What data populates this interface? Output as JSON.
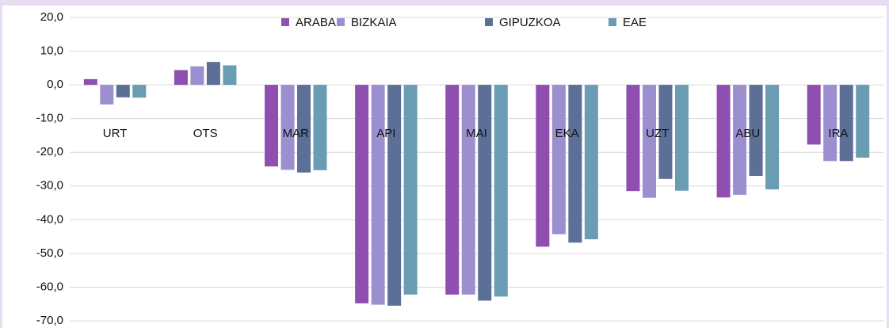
{
  "chart_data": {
    "type": "bar",
    "categories": [
      "URT",
      "OTS",
      "MAR",
      "API",
      "MAI",
      "EKA",
      "UZT",
      "ABU",
      "IRA"
    ],
    "series": [
      {
        "name": "ARABA",
        "color": "#8e4fb0",
        "values": [
          1.7,
          4.4,
          -24.2,
          -64.8,
          -62.2,
          -48.0,
          -31.5,
          -33.4,
          -17.7
        ]
      },
      {
        "name": "BIZKAIA",
        "color": "#9b8fd0",
        "values": [
          -5.8,
          5.5,
          -25.2,
          -65.2,
          -62.2,
          -44.3,
          -33.5,
          -32.6,
          -22.6
        ]
      },
      {
        "name": "GIPUZKOA",
        "color": "#5c6f97",
        "values": [
          -3.7,
          6.8,
          -26.0,
          -65.5,
          -64.0,
          -46.8,
          -27.9,
          -27.0,
          -22.6
        ]
      },
      {
        "name": "EAE",
        "color": "#6a9db3",
        "values": [
          -3.8,
          5.8,
          -25.3,
          -62.2,
          -62.8,
          -45.8,
          -31.4,
          -31.0,
          -21.6
        ]
      }
    ],
    "ylim": [
      -70,
      20
    ],
    "yticks": [
      {
        "value": -70,
        "label": "-70,0"
      },
      {
        "value": -60,
        "label": "-60,0"
      },
      {
        "value": -50,
        "label": "-50,0"
      },
      {
        "value": -40,
        "label": "-40,0"
      },
      {
        "value": -30,
        "label": "-30,0"
      },
      {
        "value": -20,
        "label": "-20,0"
      },
      {
        "value": -10,
        "label": "-10,0"
      },
      {
        "value": 0,
        "label": "0,0"
      },
      {
        "value": 10,
        "label": "10,0"
      },
      {
        "value": 20,
        "label": "20,0"
      }
    ],
    "grid": true,
    "legend": "top"
  }
}
